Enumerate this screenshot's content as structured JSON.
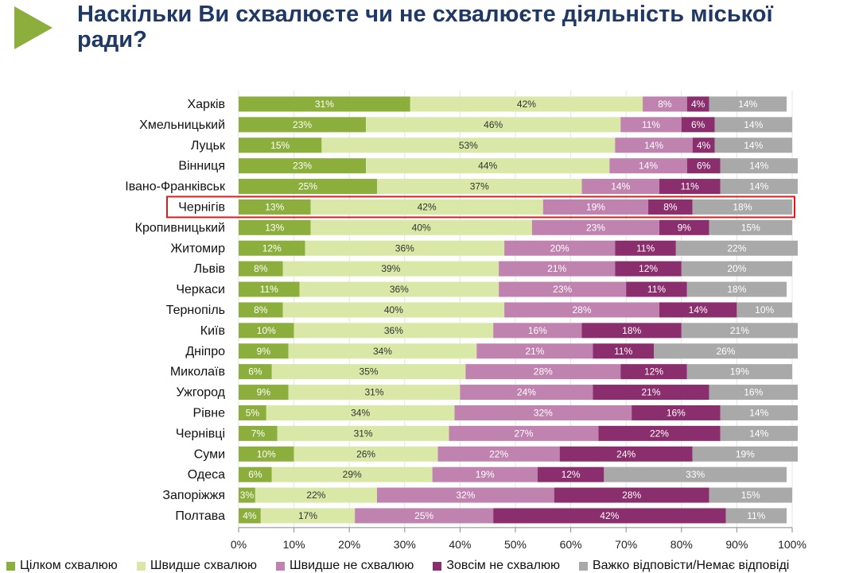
{
  "title": "Наскільки Ви схвалюєте чи не схвалюєте діяльність міської ради?",
  "colors": {
    "accent": "#8cae3c",
    "title": "#1f3864",
    "highlight": "#d42020"
  },
  "chart_data": {
    "type": "bar",
    "orientation": "horizontal",
    "stacked": true,
    "title": "Наскільки Ви схвалюєте чи не схвалюєте діяльність міської ради?",
    "xlim": [
      0,
      100
    ],
    "x_ticks": [
      "0%",
      "10%",
      "20%",
      "30%",
      "40%",
      "50%",
      "60%",
      "70%",
      "80%",
      "90%",
      "100%"
    ],
    "legend_position": "bottom",
    "highlighted_category": "Чернігів",
    "categories": [
      "Харків",
      "Хмельницький",
      "Луцьк",
      "Вінниця",
      "Івано-Франківськ",
      "Чернігів",
      "Кропивницький",
      "Житомир",
      "Львів",
      "Черкаси",
      "Тернопіль",
      "Київ",
      "Дніпро",
      "Миколаїв",
      "Ужгород",
      "Рівне",
      "Чернівці",
      "Суми",
      "Одеса",
      "Запоріжжя",
      "Полтава"
    ],
    "series": [
      {
        "name": "Цілком схвалюю",
        "color": "#8cae3c",
        "values": [
          31,
          23,
          15,
          23,
          25,
          13,
          13,
          12,
          8,
          11,
          8,
          10,
          9,
          6,
          9,
          5,
          7,
          10,
          6,
          3,
          4
        ]
      },
      {
        "name": "Швидше схвалюю",
        "color": "#d9e8a6",
        "values": [
          42,
          46,
          53,
          44,
          37,
          42,
          40,
          36,
          39,
          36,
          40,
          36,
          34,
          35,
          31,
          34,
          31,
          26,
          29,
          22,
          17
        ]
      },
      {
        "name": "Швидше не схвалюю",
        "color": "#c083b0",
        "values": [
          8,
          11,
          14,
          14,
          14,
          19,
          23,
          20,
          21,
          23,
          28,
          16,
          21,
          28,
          24,
          32,
          27,
          22,
          19,
          32,
          25
        ]
      },
      {
        "name": "Зовсім не схвалюю",
        "color": "#8b2e6e",
        "values": [
          4,
          6,
          4,
          6,
          11,
          8,
          9,
          11,
          12,
          11,
          14,
          18,
          11,
          12,
          21,
          16,
          22,
          24,
          12,
          28,
          42
        ]
      },
      {
        "name": "Важко відповісти/Немає відповіді",
        "color": "#a9a9a9",
        "values": [
          14,
          14,
          14,
          14,
          14,
          18,
          15,
          22,
          20,
          18,
          10,
          21,
          26,
          19,
          16,
          14,
          14,
          19,
          33,
          15,
          11
        ]
      }
    ],
    "labels": [
      [
        "31%",
        "42%",
        "8%",
        "4%",
        "14%"
      ],
      [
        "23%",
        "46%",
        "11%",
        "6%",
        "14%"
      ],
      [
        "15%",
        "53%",
        "14%",
        "4%",
        "14%"
      ],
      [
        "23%",
        "44%",
        "14%",
        "6%",
        "14%"
      ],
      [
        "25%",
        "37%",
        "14%",
        "11%",
        "14%"
      ],
      [
        "13%",
        "42%",
        "19%",
        "8%",
        "18%"
      ],
      [
        "13%",
        "40%",
        "23%",
        "9%",
        "15%"
      ],
      [
        "12%",
        "36%",
        "20%",
        "11%",
        "22%"
      ],
      [
        "8%",
        "39%",
        "21%",
        "12%",
        "20%"
      ],
      [
        "11%",
        "36%",
        "23%",
        "11%",
        "18%"
      ],
      [
        "8%",
        "40%",
        "28%",
        "14%",
        "10%"
      ],
      [
        "10%",
        "36%",
        "16%",
        "18%",
        "21%"
      ],
      [
        "9%",
        "34%",
        "21%",
        "11%",
        "26%"
      ],
      [
        "6%",
        "35%",
        "28%",
        "12%",
        "19%"
      ],
      [
        "9%",
        "31%",
        "24%",
        "21%",
        "16%"
      ],
      [
        "5%",
        "34%",
        "32%",
        "16%",
        "14%"
      ],
      [
        "7%",
        "31%",
        "27%",
        "22%",
        "14%"
      ],
      [
        "10%",
        "26%",
        "22%",
        "24%",
        "19%"
      ],
      [
        "6%",
        "29%",
        "19%",
        "12%",
        "33%"
      ],
      [
        "3%",
        "22%",
        "32%",
        "28%",
        "15%"
      ],
      [
        "4%",
        "17%",
        "25%",
        "42%",
        "11%"
      ]
    ]
  }
}
